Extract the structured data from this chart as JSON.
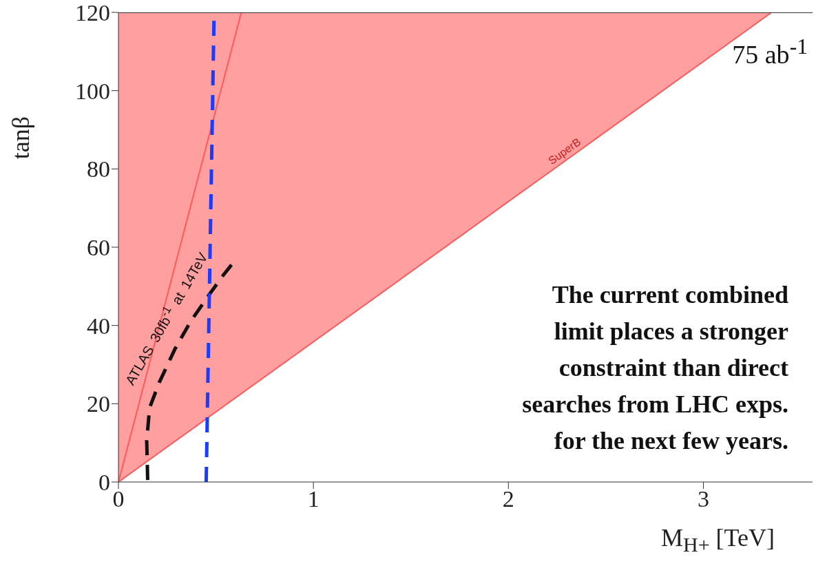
{
  "chart_data": {
    "type": "line",
    "xlabel": "M$_{H+}$ [TeV]",
    "ylabel": "tanβ",
    "xlim": [
      0,
      3.56
    ],
    "ylim": [
      0,
      120
    ],
    "xticks": [
      0,
      1,
      2,
      3
    ],
    "yticks": [
      0,
      20,
      40,
      60,
      80,
      100,
      120
    ],
    "grid": false,
    "series": [
      {
        "color": "#ff5a5a",
        "x": [
          0,
          3.35
        ],
        "values": [
          0,
          120
        ],
        "lower": [
          0,
          120
        ],
        "upper": [
          120,
          120
        ]
      },
      {
        "color": "#ff5a5a",
        "x": [
          0,
          0.63
        ],
        "values": [
          0,
          120
        ],
        "line_style": "solid"
      },
      {
        "color": "#111111",
        "x": [
          0.15,
          0.145,
          0.16,
          0.21,
          0.29,
          0.37,
          0.46,
          0.54,
          0.58
        ],
        "values": [
          0.5,
          10.6,
          19,
          25.5,
          34,
          41,
          47.5,
          53,
          55.5
        ],
        "line_style": "dashed"
      },
      {
        "color": "#1a3cff",
        "x": [
          0.45,
          0.49
        ],
        "values": [
          0,
          118
        ],
        "line_style": "dashed"
      }
    ],
    "annotations": [
      "75 ab$^{-1}$",
      {
        "text": "SuperB",
        "x": 2.29,
        "y": 82
      },
      "ATLAS 30fb$^{-1}$ at 14TeV",
      "The current combined\nlimit places a stronger\nconstraint than direct\nsearches from LHC exps.\nfor the next few years."
    ]
  }
}
